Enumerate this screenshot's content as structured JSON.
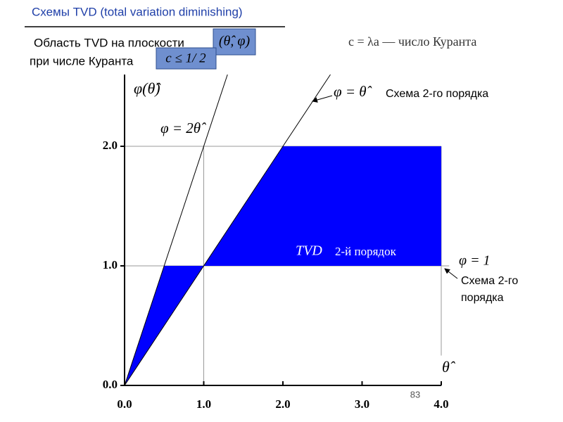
{
  "header": {
    "title": "Схемы TVD (total variation diminishing)",
    "line1": "Область TVD на плоскости",
    "plane": "(θ̂, φ)",
    "line2": "при числе Куранта",
    "condition": "c ≤ 1/ 2",
    "courant": "c = λa — число Куранта"
  },
  "chart_data": {
    "type": "region",
    "y_label": "φ(θ̂)",
    "x_label": "θ̂",
    "xlim": [
      0,
      4
    ],
    "ylim": [
      0,
      2.6
    ],
    "xticks": [
      {
        "value": 0,
        "label": "0.0"
      },
      {
        "value": 1,
        "label": "1.0"
      },
      {
        "value": 2,
        "label": "2.0"
      },
      {
        "value": 3,
        "label": "3.0"
      },
      {
        "value": 4,
        "label": "4.0"
      }
    ],
    "yticks": [
      {
        "value": 0,
        "label": "0.0"
      },
      {
        "value": 1,
        "label": "1.0"
      },
      {
        "value": 2,
        "label": "2.0"
      }
    ],
    "color": "#0000ff",
    "regions": [
      {
        "x": [
          0,
          0.5,
          1
        ],
        "y": [
          0,
          1,
          1
        ]
      },
      {
        "x": [
          1,
          2,
          4,
          4
        ],
        "y": [
          1,
          2,
          2,
          1
        ]
      }
    ],
    "lines": [
      {
        "name": "φ = 2θ̂",
        "x": [
          0,
          1.3
        ],
        "y": [
          0,
          2.6
        ]
      },
      {
        "name": "φ = θ̂",
        "x": [
          0,
          2.6
        ],
        "y": [
          0,
          2.6
        ]
      }
    ],
    "guides": [
      {
        "x": [
          0,
          4
        ],
        "y": [
          2,
          2
        ]
      },
      {
        "x": [
          0,
          4.1
        ],
        "y": [
          1,
          1
        ]
      },
      {
        "x": [
          1,
          1
        ],
        "y": [
          0,
          2
        ]
      },
      {
        "x": [
          4,
          4
        ],
        "y": [
          0.25,
          2
        ]
      }
    ],
    "annotations": {
      "second_order_top": "Схема 2-го порядка",
      "region_tvd": "TVD",
      "region_order": "2-й порядок",
      "phi_one": "φ = 1",
      "second_order_right_1": "Схема 2-го",
      "second_order_right_2": "порядка"
    },
    "page_number": "83"
  }
}
